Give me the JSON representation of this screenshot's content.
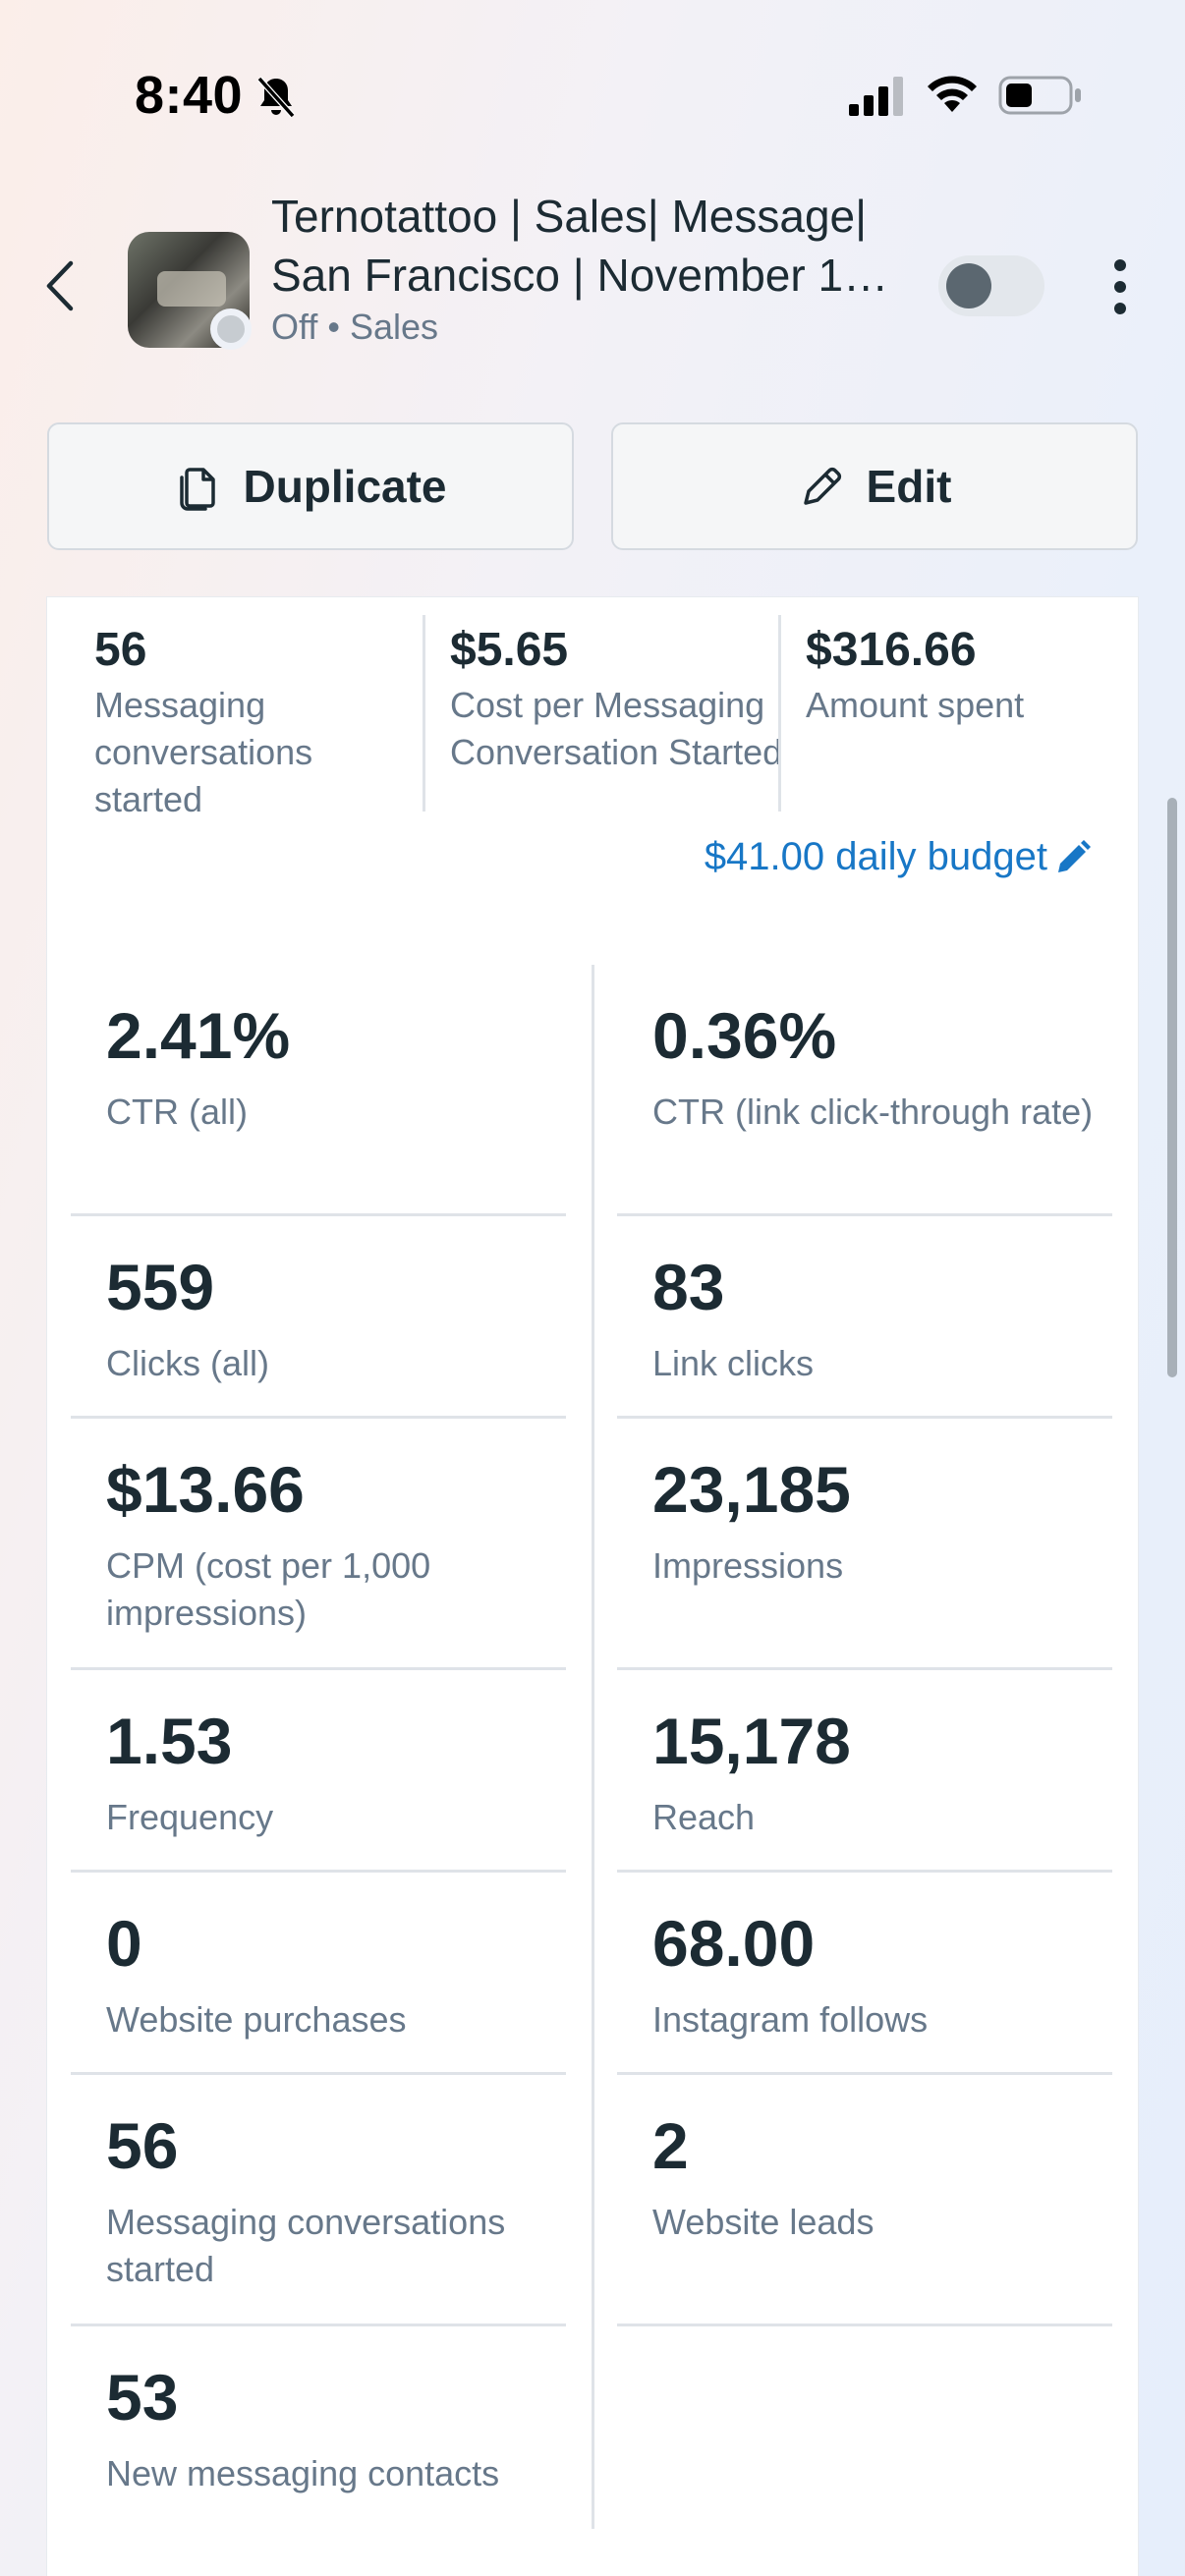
{
  "status_bar": {
    "time": "8:40",
    "icons": [
      "bell-slash-icon",
      "cellular-signal-icon",
      "wifi-icon",
      "battery-icon"
    ]
  },
  "header": {
    "title_line1": "Ternotattoo | Sales| Message|",
    "title_line2": "San Francisco | November 1…",
    "status": "Off",
    "separator": "•",
    "objective": "Sales",
    "toggle_on": false
  },
  "actions": {
    "duplicate_label": "Duplicate",
    "edit_label": "Edit"
  },
  "summary": [
    {
      "value": "56",
      "label": "Messaging conversations started"
    },
    {
      "value": "$5.65",
      "label": "Cost per Messaging Conversation Started"
    },
    {
      "value": "$316.66",
      "label": "Amount spent"
    }
  ],
  "budget": {
    "label": "$41.00 daily budget"
  },
  "metrics": {
    "left": [
      {
        "value": "2.41%",
        "label": "CTR (all)"
      },
      {
        "value": "559",
        "label": "Clicks (all)"
      },
      {
        "value": "$13.66",
        "label": "CPM (cost per 1,000 impressions)"
      },
      {
        "value": "1.53",
        "label": "Frequency"
      },
      {
        "value": "0",
        "label": "Website purchases"
      },
      {
        "value": "56",
        "label": "Messaging conversations started"
      },
      {
        "value": "53",
        "label": "New messaging contacts"
      }
    ],
    "right": [
      {
        "value": "0.36%",
        "label": "CTR (link click-through rate)"
      },
      {
        "value": "83",
        "label": "Link clicks"
      },
      {
        "value": "23,185",
        "label": "Impressions"
      },
      {
        "value": "15,178",
        "label": "Reach"
      },
      {
        "value": "68.00",
        "label": "Instagram follows"
      },
      {
        "value": "2",
        "label": "Website leads"
      }
    ]
  },
  "colors": {
    "accent_link": "#1877c6",
    "text_primary": "#1c2b33",
    "text_secondary": "#67788a",
    "divider": "#dfe3e8"
  }
}
